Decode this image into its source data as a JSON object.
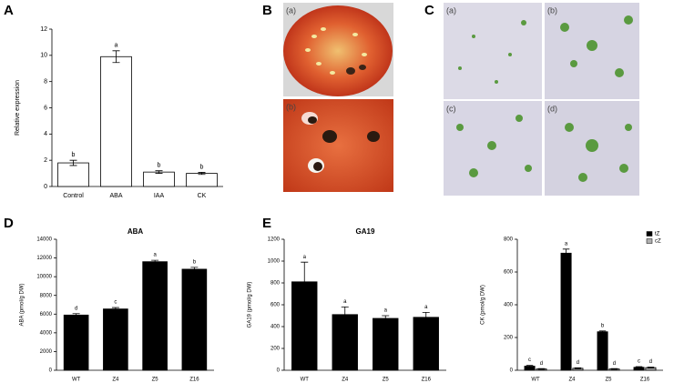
{
  "chart_data": [
    {
      "type": "bar",
      "panel": "A",
      "ylabel": "Relative expression",
      "categories": [
        "Control",
        "ABA",
        "IAA",
        "CK"
      ],
      "values": [
        1.8,
        9.9,
        1.1,
        1.0
      ],
      "errors": [
        0.2,
        0.45,
        0.1,
        0.08
      ],
      "letters": [
        "b",
        "a",
        "b",
        "b"
      ],
      "color": "#ffffff",
      "ylim": [
        0,
        12
      ],
      "yticks": [
        0,
        2,
        4,
        6,
        8,
        10,
        12
      ]
    },
    {
      "type": "bar",
      "panel": "D",
      "title": "ABA",
      "ylabel": "ABA (pmol/g DW)",
      "categories": [
        "WT",
        "Z4",
        "Z5",
        "Z16"
      ],
      "values": [
        5900,
        6550,
        11600,
        10800
      ],
      "errors": [
        150,
        150,
        150,
        200
      ],
      "letters": [
        "d",
        "c",
        "a",
        "b"
      ],
      "color": "#000000",
      "ylim": [
        0,
        14000
      ],
      "yticks": [
        0,
        2000,
        4000,
        6000,
        8000,
        10000,
        12000,
        14000
      ]
    },
    {
      "type": "bar",
      "panel": "E",
      "title": "GA19",
      "ylabel": "GA19 (pmol/g DW)",
      "categories": [
        "WT",
        "Z4",
        "Z5",
        "Z16"
      ],
      "values": [
        810,
        510,
        475,
        485
      ],
      "errors": [
        180,
        70,
        25,
        45
      ],
      "letters": [
        "a",
        "a",
        "a",
        "a"
      ],
      "color": "#000000",
      "ylim": [
        0,
        1200
      ],
      "yticks": [
        0,
        200,
        400,
        600,
        800,
        1000,
        1200
      ]
    },
    {
      "type": "bar",
      "ylabel": "CK (pmol/g DW)",
      "legend": "upper right",
      "categories": [
        "WT",
        "Z4",
        "Z5",
        "Z16"
      ],
      "series": [
        {
          "name": "tZ",
          "color": "#000000",
          "values": [
            25,
            715,
            235,
            18
          ],
          "errors": [
            5,
            25,
            5,
            4
          ],
          "letters": [
            "c",
            "a",
            "b",
            "c"
          ]
        },
        {
          "name": "cZ",
          "color": "#b0b0b0",
          "values": [
            8,
            12,
            8,
            16
          ],
          "errors": [
            2,
            3,
            2,
            3
          ],
          "letters": [
            "d",
            "d",
            "d",
            "d"
          ]
        }
      ],
      "ylim": [
        0,
        800
      ],
      "yticks": [
        0,
        200,
        400,
        600,
        800
      ]
    }
  ],
  "photos": [
    {
      "panel": "B",
      "labels": [
        "(a)",
        "(b)"
      ]
    },
    {
      "panel": "C",
      "labels": [
        "(a)",
        "(b)",
        "(c)",
        "(d)"
      ]
    }
  ]
}
